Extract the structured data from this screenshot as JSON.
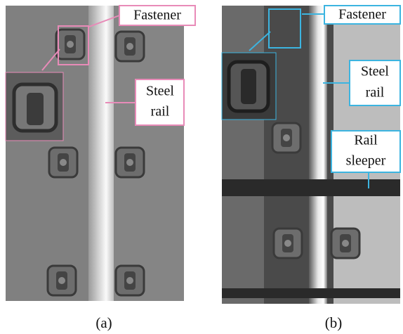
{
  "panels": [
    {
      "caption": "(a)",
      "labels": [
        [
          "Fastener"
        ],
        [
          "Steel",
          "rail"
        ]
      ]
    },
    {
      "caption": "(b)",
      "labels": [
        [
          "Fastener"
        ],
        [
          "Steel",
          "rail"
        ],
        [
          "Rail",
          "sleeper"
        ]
      ]
    }
  ]
}
